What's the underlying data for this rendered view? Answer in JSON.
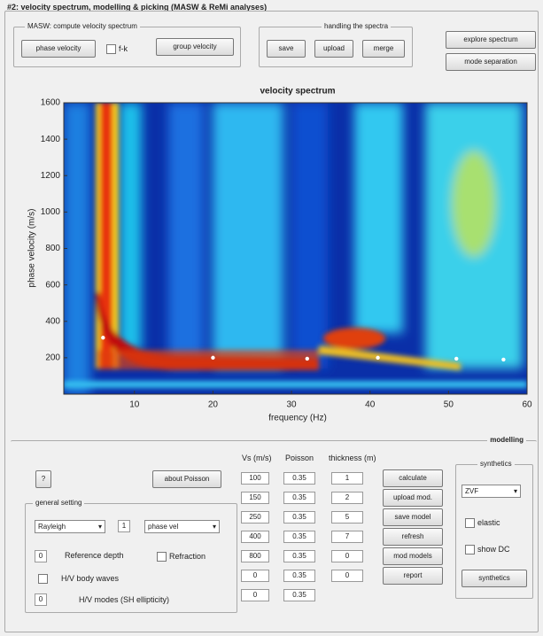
{
  "window_title": "#2: velocity spectrum, modelling & picking (MASW & ReMi analyses)",
  "masw_panel": {
    "title": "MASW: compute velocity spectrum",
    "phase_button": "phase velocity",
    "fk_checkbox": "f-k",
    "group_button": "group velocity"
  },
  "spectra_panel": {
    "title": "handling the spectra",
    "buttons": [
      "save",
      "upload",
      "merge"
    ]
  },
  "side_buttons": [
    "explore spectrum",
    "mode separation"
  ],
  "chart_data": {
    "type": "heatmap",
    "title": "velocity spectrum",
    "x_label": "frequency (Hz)",
    "y_label": "phase velocity (m/s)",
    "xlim": [
      1,
      60
    ],
    "xticks": [
      10,
      20,
      30,
      40,
      50,
      60
    ],
    "ylim": [
      0,
      1600
    ],
    "yticks": [
      200,
      400,
      600,
      800,
      1000,
      1200,
      1400,
      1600
    ],
    "picks": {
      "x": [
        6,
        20,
        32,
        41,
        51,
        57
      ],
      "values": [
        310,
        200,
        195,
        200,
        195,
        190
      ],
      "color": "#ffffff"
    }
  },
  "modelling": {
    "title": "modelling",
    "help_button": "?",
    "poisson_button": "about Poisson",
    "headers": [
      "Vs (m/s)",
      "Poisson",
      "thickness (m)"
    ],
    "vs": [
      100,
      150,
      250,
      400,
      800,
      0,
      0
    ],
    "poisson": [
      0.35,
      0.35,
      0.35,
      0.35,
      0.35,
      0.35,
      0.35
    ],
    "thickness": [
      1,
      2,
      5,
      7,
      0,
      0
    ],
    "buttons": [
      "calculate",
      "upload mod.",
      "save model",
      "refresh",
      "mod models",
      "report"
    ]
  },
  "general_setting": {
    "title": "general setting",
    "wave_select": "Rayleigh",
    "mode_input": 1,
    "vel_select": "phase vel",
    "ref_depth_input": 0,
    "ref_depth_label": "Reference depth",
    "refraction_checkbox": "Refraction",
    "hv_body_checkbox": "H/V body waves",
    "hv_modes_input": 0,
    "hv_modes_label": "H/V modes (SH ellipticity)"
  },
  "synthetics": {
    "title": "synthetics",
    "select": "ZVF",
    "elastic_checkbox": "elastic",
    "show_dc_checkbox": "show DC",
    "button": "synthetics"
  }
}
